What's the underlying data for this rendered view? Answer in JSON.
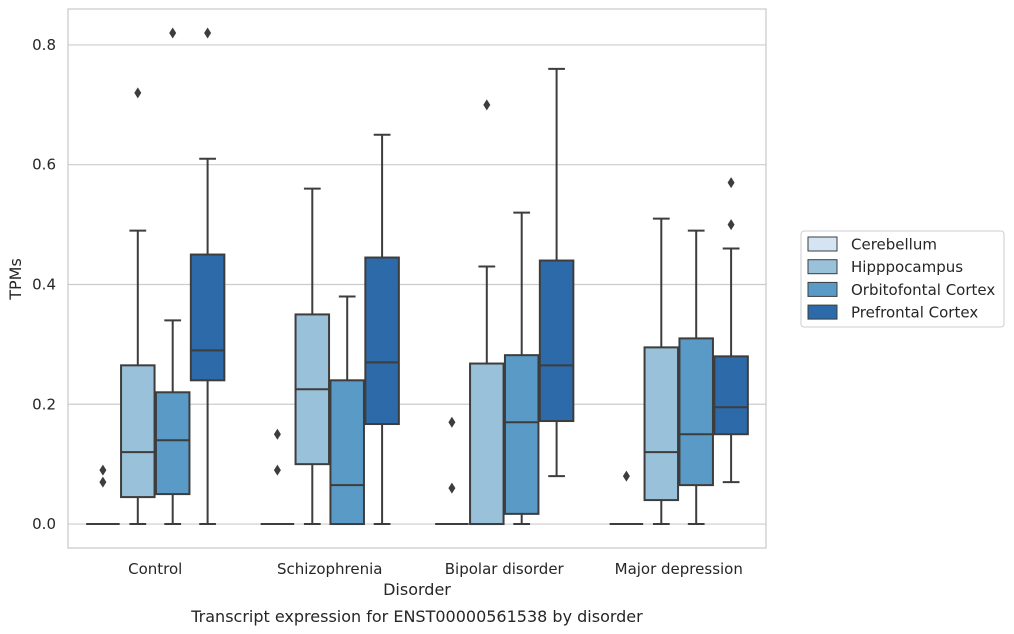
{
  "chart_data": {
    "type": "box",
    "caption": "Transcript expression for ENST00000561538 by disorder",
    "xlabel": "Disorder",
    "ylabel": "TPMs",
    "ylim": [
      -0.04,
      0.86
    ],
    "yticks": [
      "0.0",
      "0.2",
      "0.4",
      "0.6",
      "0.8"
    ],
    "ytick_values": [
      0.0,
      0.2,
      0.4,
      0.6,
      0.8
    ],
    "categories": [
      "Control",
      "Schizophrenia",
      "Bipolar disorder",
      "Major depression"
    ],
    "grid": "horizontal",
    "legend_position": "right",
    "series": [
      {
        "name": "Cerebellum",
        "color": "#d4e4f2",
        "boxes": [
          {
            "min": 0.0,
            "q1": 0.0,
            "median": 0.0,
            "q3": 0.0,
            "max": 0.0,
            "outliers": [
              0.07,
              0.09
            ]
          },
          {
            "min": 0.0,
            "q1": 0.0,
            "median": 0.0,
            "q3": 0.0,
            "max": 0.0,
            "outliers": [
              0.09,
              0.15
            ]
          },
          {
            "min": 0.0,
            "q1": 0.0,
            "median": 0.0,
            "q3": 0.0,
            "max": 0.0,
            "outliers": [
              0.06,
              0.17
            ]
          },
          {
            "min": 0.0,
            "q1": 0.0,
            "median": 0.0,
            "q3": 0.0,
            "max": 0.0,
            "outliers": [
              0.08
            ]
          }
        ]
      },
      {
        "name": "Hipppocampus",
        "color": "#99c1da",
        "boxes": [
          {
            "min": 0.0,
            "q1": 0.045,
            "median": 0.12,
            "q3": 0.265,
            "max": 0.49,
            "outliers": [
              0.72
            ]
          },
          {
            "min": 0.0,
            "q1": 0.1,
            "median": 0.225,
            "q3": 0.35,
            "max": 0.56,
            "outliers": []
          },
          {
            "min": 0.0,
            "q1": 0.0,
            "median": 0.0,
            "q3": 0.268,
            "max": 0.43,
            "outliers": [
              0.7
            ]
          },
          {
            "min": 0.0,
            "q1": 0.04,
            "median": 0.12,
            "q3": 0.295,
            "max": 0.51,
            "outliers": []
          }
        ]
      },
      {
        "name": "Orbitofontal Cortex",
        "color": "#5a9ac6",
        "boxes": [
          {
            "min": 0.0,
            "q1": 0.05,
            "median": 0.14,
            "q3": 0.22,
            "max": 0.34,
            "outliers": [
              0.82
            ]
          },
          {
            "min": 0.0,
            "q1": 0.0,
            "median": 0.065,
            "q3": 0.24,
            "max": 0.38,
            "outliers": []
          },
          {
            "min": 0.0,
            "q1": 0.017,
            "median": 0.17,
            "q3": 0.282,
            "max": 0.52,
            "outliers": []
          },
          {
            "min": 0.0,
            "q1": 0.065,
            "median": 0.15,
            "q3": 0.31,
            "max": 0.49,
            "outliers": []
          }
        ]
      },
      {
        "name": "Prefrontal Cortex",
        "color": "#2c6aa9",
        "boxes": [
          {
            "min": 0.0,
            "q1": 0.24,
            "median": 0.29,
            "q3": 0.45,
            "max": 0.61,
            "outliers": [
              0.82
            ]
          },
          {
            "min": 0.0,
            "q1": 0.167,
            "median": 0.27,
            "q3": 0.445,
            "max": 0.65,
            "outliers": []
          },
          {
            "min": 0.08,
            "q1": 0.172,
            "median": 0.265,
            "q3": 0.44,
            "max": 0.76,
            "outliers": []
          },
          {
            "min": 0.07,
            "q1": 0.15,
            "median": 0.195,
            "q3": 0.28,
            "max": 0.46,
            "outliers": [
              0.5,
              0.57
            ]
          }
        ]
      }
    ]
  }
}
